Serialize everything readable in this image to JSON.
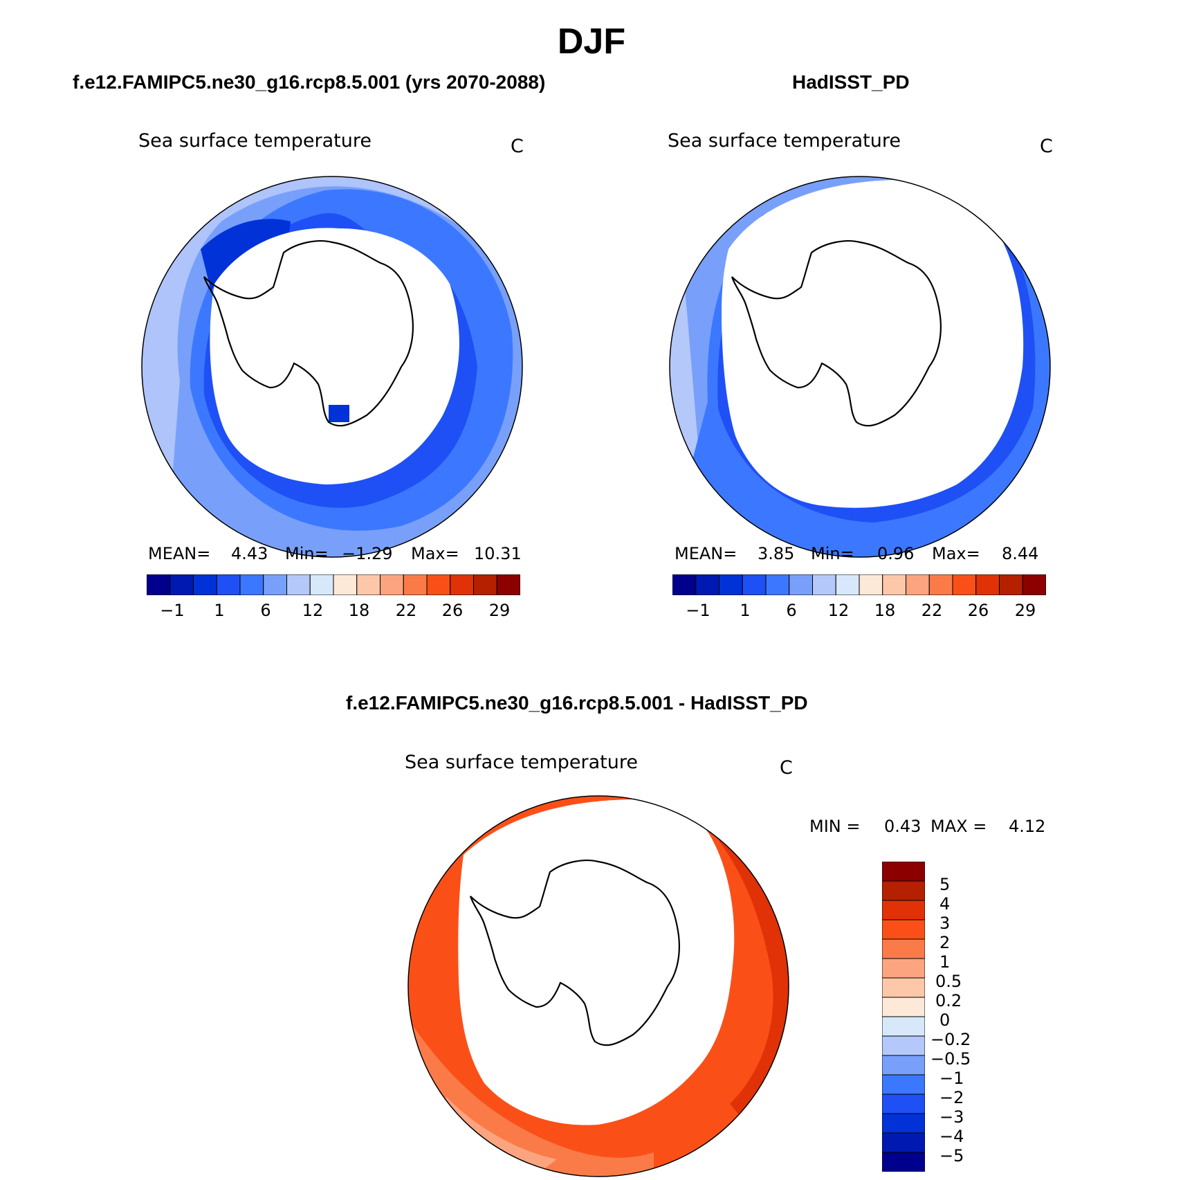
{
  "season": "DJF",
  "panels": [
    {
      "case_title": "f.e12.FAMIPC5.ne30_g16.rcp8.5.001 (yrs 2070-2088)",
      "variable": "Sea surface temperature",
      "units": "C",
      "stats": {
        "mean_label": "MEAN=",
        "mean": "4.43",
        "min_label": "Min=",
        "min": "−1.29",
        "max_label": "Max=",
        "max": "10.31"
      },
      "tick_labels": [
        "−1",
        "1",
        "6",
        "12",
        "18",
        "22",
        "26",
        "29"
      ]
    },
    {
      "case_title": "HadISST_PD",
      "variable": "Sea surface temperature",
      "units": "C",
      "stats": {
        "mean_label": "MEAN=",
        "mean": "3.85",
        "min_label": "Min=",
        "min": "0.96",
        "max_label": "Max=",
        "max": "8.44"
      },
      "tick_labels": [
        "−1",
        "1",
        "6",
        "12",
        "18",
        "22",
        "26",
        "29"
      ]
    }
  ],
  "diff_panel": {
    "case_title": "f.e12.FAMIPC5.ne30_g16.rcp8.5.001 - HadISST_PD",
    "variable": "Sea surface temperature",
    "units": "C",
    "stats": {
      "min_label": "MIN =",
      "min": "0.43",
      "max_label": "MAX =",
      "max": "4.12"
    },
    "tick_labels": [
      "5",
      "4",
      "3",
      "2",
      "1",
      "0.5",
      "0.2",
      "0",
      "−0.2",
      "−0.5",
      "−1",
      "−2",
      "−3",
      "−4",
      "−5"
    ]
  },
  "colors": {
    "abs_scale": [
      "#00008c",
      "#0019b0",
      "#0032d8",
      "#1e50f5",
      "#3c78ff",
      "#78a0fa",
      "#b4c8fa",
      "#d7e8fa",
      "#fde9d8",
      "#fdc8aa",
      "#fca480",
      "#fb7b48",
      "#fa5018",
      "#e03206",
      "#b42000",
      "#8c0000"
    ],
    "diff_scale": [
      "#8c0000",
      "#b42000",
      "#e03206",
      "#fa5018",
      "#fb7b48",
      "#fca480",
      "#fdc8aa",
      "#fde9d8",
      "#d7e8fa",
      "#b4c8fa",
      "#78a0fa",
      "#3c78ff",
      "#1e50f5",
      "#0032d8",
      "#0019b0",
      "#00008c"
    ]
  }
}
